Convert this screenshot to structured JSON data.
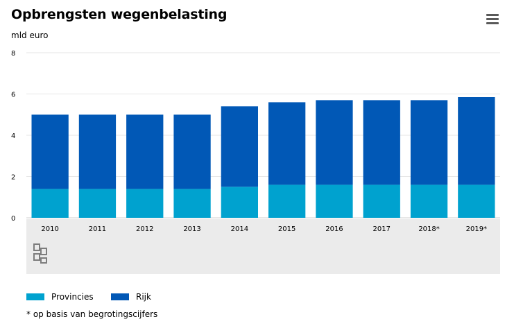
{
  "header": {
    "title": "Opbrengsten wegenbelasting",
    "unit": "mld euro",
    "menu_icon": "hamburger-menu-icon"
  },
  "colors": {
    "provincies": "#00a2cf",
    "rijk": "#0158b6",
    "grid": "#e6e6e6",
    "footer_band": "#ebebeb"
  },
  "logo": {
    "name": "cbs-logo"
  },
  "legend": {
    "items": [
      {
        "label": "Provincies",
        "color": "#00a2cf"
      },
      {
        "label": "Rijk",
        "color": "#0158b6"
      }
    ]
  },
  "footnote": "* op basis van begrotingscijfers",
  "chart_data": {
    "type": "bar",
    "stacked": true,
    "title": "Opbrengsten wegenbelasting",
    "ylabel": "mld euro",
    "xlabel": "",
    "categories": [
      "2010",
      "2011",
      "2012",
      "2013",
      "2014",
      "2015",
      "2016",
      "2017",
      "2018*",
      "2019*"
    ],
    "ylim": [
      0,
      8
    ],
    "yticks": [
      "0",
      "2",
      "4",
      "6",
      "8"
    ],
    "grid": true,
    "legend_position": "bottom-left",
    "series": [
      {
        "name": "Provincies",
        "color": "#00a2cf",
        "values": [
          1.4,
          1.4,
          1.4,
          1.4,
          1.5,
          1.6,
          1.6,
          1.6,
          1.6,
          1.6
        ]
      },
      {
        "name": "Rijk",
        "color": "#0158b6",
        "values": [
          3.6,
          3.6,
          3.6,
          3.6,
          3.9,
          4.0,
          4.1,
          4.1,
          4.1,
          4.25
        ]
      }
    ]
  }
}
